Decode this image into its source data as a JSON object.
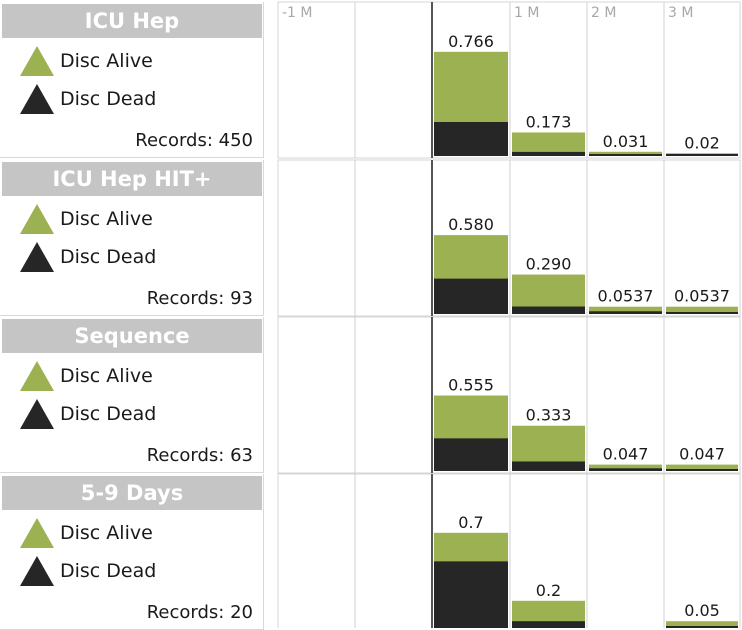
{
  "chart_data": {
    "type": "bar",
    "stacked": true,
    "columns": [
      "-1 M",
      "",
      "",
      "1 M",
      "2 M",
      "3 M"
    ],
    "legend": {
      "alive_label": "Disc Alive",
      "dead_label": "Disc Dead"
    },
    "colors": {
      "alive": "#9cb151",
      "dead": "#262626"
    },
    "panels": [
      {
        "title": "ICU Hep",
        "records": "Records: 450",
        "totals": [
          null,
          null,
          0.766,
          0.173,
          0.031,
          0.02
        ],
        "labels": [
          "",
          "",
          "0.766",
          "0.173",
          "0.031",
          "0.02"
        ],
        "dead": [
          null,
          null,
          0.25,
          0.03,
          0.01,
          0.005
        ]
      },
      {
        "title": "ICU Hep HIT+",
        "records": "Records: 93",
        "totals": [
          null,
          null,
          0.58,
          0.29,
          0.0537,
          0.0537
        ],
        "labels": [
          "",
          "",
          "0.580",
          "0.290",
          "0.0537",
          "0.0537"
        ],
        "dead": [
          null,
          null,
          0.26,
          0.055,
          0.02,
          0.012
        ]
      },
      {
        "title": "Sequence",
        "records": "Records: 63",
        "totals": [
          null,
          null,
          0.555,
          0.333,
          0.047,
          0.047
        ],
        "labels": [
          "",
          "",
          "0.555",
          "0.333",
          "0.047",
          "0.047"
        ],
        "dead": [
          null,
          null,
          0.24,
          0.07,
          0.02,
          0.012
        ]
      },
      {
        "title": "5-9 Days",
        "records": "Records: 20",
        "totals": [
          null,
          null,
          0.7,
          0.2,
          null,
          0.05
        ],
        "labels": [
          "",
          "",
          "0.7",
          "0.2",
          "",
          "0.05"
        ],
        "dead": [
          null,
          null,
          0.49,
          0.05,
          null,
          0.012
        ]
      }
    ]
  }
}
